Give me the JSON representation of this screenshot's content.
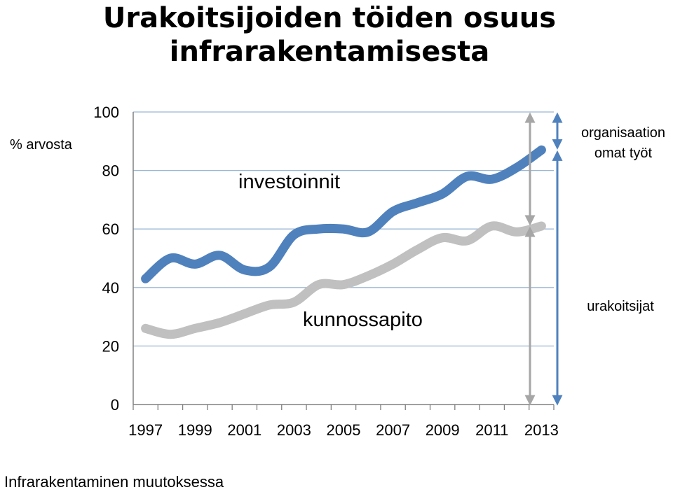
{
  "title_line1": "Urakoitsijoiden töiden osuus",
  "title_line2": "infrarakentamisesta",
  "footer": "Infrarakentaminen muutoksessa",
  "colors": {
    "blue": "#4f81bd",
    "gray": "#c0c0c0",
    "gridline": "#9bb7d4",
    "axis": "#808080"
  },
  "chart_data": {
    "type": "line",
    "ylabel": "% arvosta",
    "ylim": [
      0,
      100
    ],
    "yticks": [
      0,
      20,
      40,
      60,
      80,
      100
    ],
    "xlim": [
      1996.5,
      2013.5
    ],
    "xticks": [
      1997,
      1999,
      2001,
      2003,
      2005,
      2007,
      2009,
      2011,
      2013
    ],
    "grid": true,
    "series": [
      {
        "name": "investoinnit",
        "color": "#4f81bd",
        "x": [
          1997,
          1998,
          1999,
          2000,
          2001,
          2002,
          2003,
          2004,
          2005,
          2006,
          2007,
          2008,
          2009,
          2010,
          2011,
          2012,
          2013
        ],
        "values": [
          43,
          50,
          48,
          51,
          46,
          47,
          58,
          60,
          60,
          59,
          66,
          69,
          72,
          78,
          77,
          81,
          87
        ]
      },
      {
        "name": "kunnossapito",
        "color": "#c0c0c0",
        "x": [
          1997,
          1998,
          1999,
          2000,
          2001,
          2002,
          2003,
          2004,
          2005,
          2006,
          2007,
          2008,
          2009,
          2010,
          2011,
          2012,
          2013
        ],
        "values": [
          26,
          24,
          26,
          28,
          31,
          34,
          35,
          41,
          41,
          44,
          48,
          53,
          57,
          56,
          61,
          59,
          61
        ]
      }
    ],
    "annotations": {
      "top_bracket": "organisaation omat työt",
      "bottom_bracket": "urakoitsijat"
    }
  }
}
